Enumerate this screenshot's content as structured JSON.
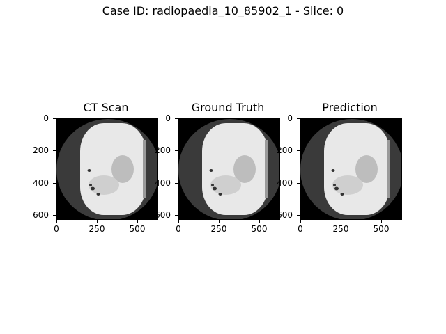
{
  "figure": {
    "suptitle": "Case ID: radiopaedia_10_85902_1 - Slice: 0"
  },
  "panels": [
    {
      "title": "CT Scan",
      "y_ticks": [
        "0",
        "200",
        "400",
        "600"
      ],
      "x_ticks": [
        "0",
        "250",
        "500"
      ]
    },
    {
      "title": "Ground Truth",
      "y_ticks": [
        "0",
        "200",
        "400",
        "600"
      ],
      "x_ticks": [
        "0",
        "250",
        "500"
      ]
    },
    {
      "title": "Prediction",
      "y_ticks": [
        "0",
        "200",
        "400",
        "600"
      ],
      "x_ticks": [
        "0",
        "250",
        "500"
      ]
    }
  ],
  "colors": {
    "background": "#000000",
    "ring": "#3a3a3a",
    "tissue": "#e8e8e8",
    "organ": "#bdbdbd",
    "air": "#333333"
  }
}
